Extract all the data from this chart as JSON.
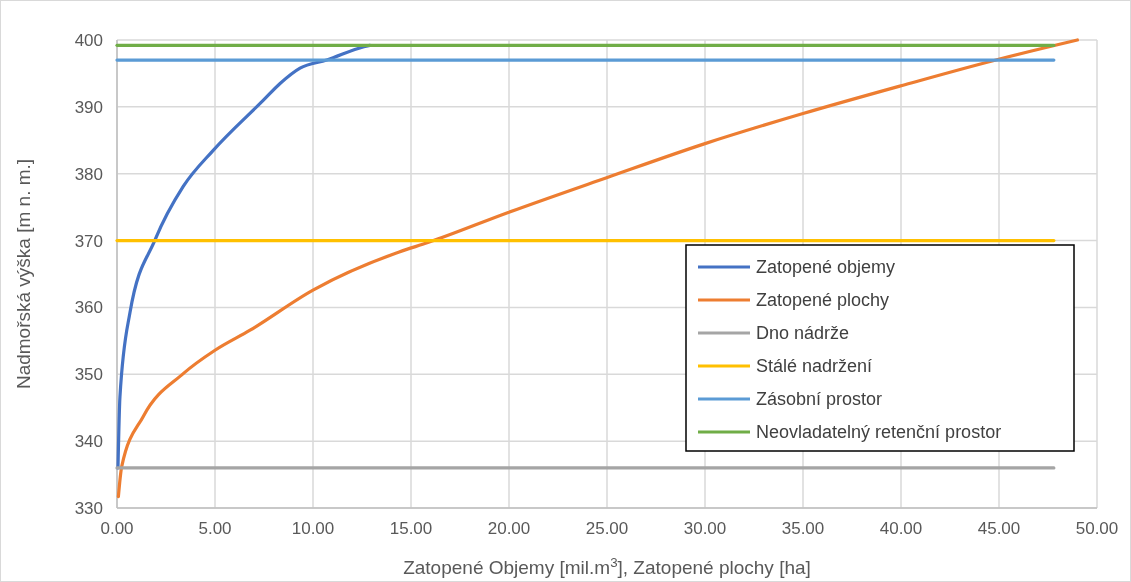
{
  "chart_data": {
    "type": "line",
    "xlabel": "Zatopené Objemy [mil.m$^{3}$], Zatopené plochy [ha]",
    "ylabel": "Nadmořská výška [m n. m.]",
    "xlim": [
      0,
      50
    ],
    "ylim": [
      330,
      400
    ],
    "xticks": [
      {
        "value": 0,
        "label": "0.00"
      },
      {
        "value": 5,
        "label": "5.00"
      },
      {
        "value": 10,
        "label": "10.00"
      },
      {
        "value": 15,
        "label": "15.00"
      },
      {
        "value": 20,
        "label": "20.00"
      },
      {
        "value": 25,
        "label": "25.00"
      },
      {
        "value": 30,
        "label": "30.00"
      },
      {
        "value": 35,
        "label": "35.00"
      },
      {
        "value": 40,
        "label": "40.00"
      },
      {
        "value": 45,
        "label": "45.00"
      },
      {
        "value": 50,
        "label": "50.00"
      }
    ],
    "yticks": [
      330,
      340,
      350,
      360,
      370,
      380,
      390,
      400
    ],
    "grid": true,
    "legend": "right",
    "series": [
      {
        "name": "Zatopené objemy",
        "color": "#4472c4",
        "x": [
          0.05,
          0.15,
          0.66,
          1.94,
          3.38,
          4.91,
          7.47,
          8.32,
          9.34,
          10.7,
          12.6,
          12.9
        ],
        "values": [
          336,
          346.6,
          359.2,
          370.1,
          378.1,
          383.5,
          391,
          393.5,
          395.8,
          397,
          399,
          399.2
        ]
      },
      {
        "name": "Zatopené plochy",
        "color": "#ed7d31",
        "x": [
          0.07,
          0.24,
          1.34,
          3.38,
          5,
          6.79,
          10,
          14.4,
          15.86,
          19.96,
          24.98,
          30,
          35,
          40.06,
          45.08,
          49
        ],
        "values": [
          331.7,
          336.2,
          343.7,
          350.1,
          353.6,
          356.6,
          362.6,
          368.3,
          369.7,
          374.2,
          379.4,
          384.5,
          389,
          393.2,
          397.2,
          400
        ]
      },
      {
        "name": "Dno nádrže",
        "color": "#a5a5a5",
        "x": [
          0,
          47.8
        ],
        "values": [
          336,
          336
        ]
      },
      {
        "name": "Stálé nadržení",
        "color": "#ffc000",
        "x": [
          0,
          47.8
        ],
        "values": [
          370,
          370
        ]
      },
      {
        "name": "Zásobní prostor",
        "color": "#5b9bd5",
        "x": [
          0,
          47.8
        ],
        "values": [
          397,
          397
        ]
      },
      {
        "name": "Neovladatelný retenční prostor",
        "color": "#70ad47",
        "x": [
          0,
          47.8
        ],
        "values": [
          399.2,
          399.2
        ]
      }
    ]
  }
}
